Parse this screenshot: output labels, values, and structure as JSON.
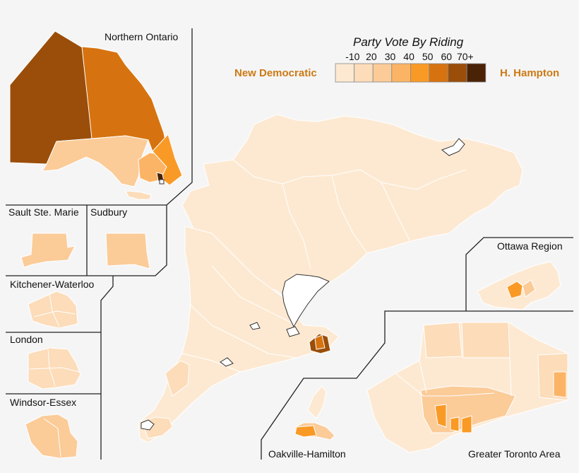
{
  "legend": {
    "title": "Party Vote By Riding",
    "ticks": [
      "-10",
      "20",
      "30",
      "40",
      "50",
      "60",
      "70+"
    ],
    "left_label": "New Democratic",
    "right_label": "H. Hampton",
    "colors": [
      "#fde9d2",
      "#fcdcb9",
      "#fbcb98",
      "#fbb466",
      "#f99a26",
      "#d67310",
      "#9a4e0a",
      "#4a2205"
    ]
  },
  "insets": {
    "northern": "Northern Ontario",
    "sault": "Sault Ste. Marie",
    "sudbury": "Sudbury",
    "kw": "Kitchener-Waterloo",
    "london": "London",
    "windsor": "Windsor-Essex",
    "ottawa": "Ottawa Region",
    "oakville": "Oakville-Hamilton",
    "gta": "Greater Toronto Area"
  },
  "colors": {
    "background": "#f5f5f5",
    "ndp_accent": "#cc7a14",
    "border": "#ffffff",
    "frame": "#222222"
  }
}
